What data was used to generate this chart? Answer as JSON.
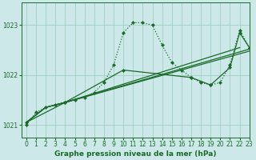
{
  "title": "Graphe pression niveau de la mer (hPa)",
  "bg_color": "#cce8e8",
  "grid_color": "#99ccbb",
  "line_color": "#1a6b2a",
  "xlim": [
    -0.5,
    23
  ],
  "ylim": [
    1020.75,
    1023.45
  ],
  "yticks": [
    1021,
    1022,
    1023
  ],
  "xticks": [
    0,
    1,
    2,
    3,
    4,
    5,
    6,
    7,
    8,
    9,
    10,
    11,
    12,
    13,
    14,
    15,
    16,
    17,
    18,
    19,
    20,
    21,
    22,
    23
  ],
  "series": [
    {
      "x": [
        0,
        1,
        2,
        3,
        4,
        5,
        6,
        7,
        8,
        9,
        10,
        11,
        12,
        13,
        14,
        15,
        16,
        17,
        18,
        19,
        20,
        21,
        22,
        23
      ],
      "y": [
        1021.0,
        1021.25,
        1021.35,
        1021.4,
        1021.45,
        1021.5,
        1021.55,
        1021.65,
        1021.85,
        1022.2,
        1022.85,
        1023.05,
        1023.05,
        1023.0,
        1022.6,
        1022.25,
        1022.1,
        1021.95,
        1021.85,
        1021.8,
        1021.85,
        1022.2,
        1022.9,
        1022.55
      ],
      "style": "dotted",
      "marker": true
    },
    {
      "x": [
        0,
        2,
        4,
        22
      ],
      "y": [
        1021.05,
        1021.35,
        1021.45,
        1022.55
      ],
      "style": "solid",
      "marker": false
    },
    {
      "x": [
        0,
        2,
        4,
        23
      ],
      "y": [
        1021.05,
        1021.35,
        1021.45,
        1022.52
      ],
      "style": "solid",
      "marker": false
    },
    {
      "x": [
        0,
        2,
        4,
        23
      ],
      "y": [
        1021.05,
        1021.35,
        1021.45,
        1022.48
      ],
      "style": "solid",
      "marker": false
    },
    {
      "x": [
        0,
        4,
        10,
        17,
        19,
        21,
        22,
        23
      ],
      "y": [
        1021.05,
        1021.45,
        1022.1,
        1021.95,
        1021.8,
        1022.15,
        1022.85,
        1022.55
      ],
      "style": "solid",
      "marker": true
    }
  ],
  "marker_style": "D",
  "markersize": 2.0,
  "linewidth": 0.9,
  "tick_fontsize": 5.5,
  "xlabel_fontsize": 6.5
}
